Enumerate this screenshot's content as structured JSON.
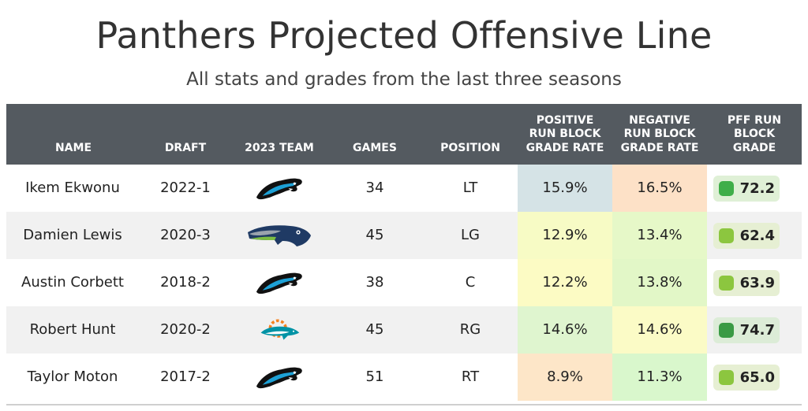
{
  "title": "Panthers Projected Offensive Line",
  "subtitle": "All stats and grades from the last three seasons",
  "columns": {
    "name": "NAME",
    "draft": "DRAFT",
    "team": "2023 TEAM",
    "games": "GAMES",
    "position": "POSITION",
    "positive": [
      "POSITIVE",
      "RUN BLOCK",
      "GRADE RATE"
    ],
    "negative": [
      "NEGATIVE",
      "RUN BLOCK",
      "GRADE RATE"
    ],
    "pff": [
      "PFF RUN",
      "BLOCK",
      "GRADE"
    ]
  },
  "rows": [
    {
      "name": "Ikem Ekwonu",
      "draft": "2022-1",
      "team": "Carolina Panthers",
      "team_logo": "panther-logo-icon",
      "games": "34",
      "position": "LT",
      "positive": "15.9%",
      "positive_color": "#d5e3e6",
      "negative": "16.5%",
      "negative_color": "#fde1c7",
      "grade": "72.2",
      "grade_color": "#3fae49",
      "grade_bg": "#dff0d6"
    },
    {
      "name": "Damien Lewis",
      "draft": "2020-3",
      "team": "Seattle Seahawks",
      "team_logo": "seahawk-logo-icon",
      "games": "45",
      "position": "LG",
      "positive": "12.9%",
      "positive_color": "#f7fbc5",
      "negative": "13.4%",
      "negative_color": "#e6f8c8",
      "grade": "62.4",
      "grade_color": "#8cc63f",
      "grade_bg": "#e6efd3"
    },
    {
      "name": "Austin Corbett",
      "draft": "2018-2",
      "team": "Carolina Panthers",
      "team_logo": "panther-logo-icon",
      "games": "38",
      "position": "C",
      "positive": "12.2%",
      "positive_color": "#fcfbc4",
      "negative": "13.8%",
      "negative_color": "#e2f7c7",
      "grade": "63.9",
      "grade_color": "#8cc63f",
      "grade_bg": "#e6efd3"
    },
    {
      "name": "Robert Hunt",
      "draft": "2020-2",
      "team": "Miami Dolphins",
      "team_logo": "dolphin-logo-icon",
      "games": "45",
      "position": "RG",
      "positive": "14.6%",
      "positive_color": "#dff5cf",
      "negative": "14.6%",
      "negative_color": "#fbfbc6",
      "grade": "74.7",
      "grade_color": "#3a9a44",
      "grade_bg": "#dcecd7"
    },
    {
      "name": "Taylor Moton",
      "draft": "2017-2",
      "team": "Carolina Panthers",
      "team_logo": "panther-logo-icon",
      "games": "51",
      "position": "RT",
      "positive": "8.9%",
      "positive_color": "#fde6c8",
      "negative": "11.3%",
      "negative_color": "#d9f7cc",
      "grade": "65.0",
      "grade_color": "#8cc63f",
      "grade_bg": "#e6efd3"
    }
  ],
  "chart_data": {
    "type": "table",
    "title": "Panthers Projected Offensive Line",
    "subtitle": "All stats and grades from the last three seasons",
    "columns": [
      "NAME",
      "DRAFT",
      "2023 TEAM",
      "GAMES",
      "POSITION",
      "POSITIVE RUN BLOCK GRADE RATE",
      "NEGATIVE RUN BLOCK GRADE RATE",
      "PFF RUN BLOCK GRADE"
    ],
    "rows": [
      [
        "Ikem Ekwonu",
        "2022-1",
        "Carolina Panthers",
        34,
        "LT",
        15.9,
        16.5,
        72.2
      ],
      [
        "Damien Lewis",
        "2020-3",
        "Seattle Seahawks",
        45,
        "LG",
        12.9,
        13.4,
        62.4
      ],
      [
        "Austin Corbett",
        "2018-2",
        "Carolina Panthers",
        38,
        "C",
        12.2,
        13.8,
        63.9
      ],
      [
        "Robert Hunt",
        "2020-2",
        "Miami Dolphins",
        45,
        "RG",
        14.6,
        14.6,
        74.7
      ],
      [
        "Taylor Moton",
        "2017-2",
        "Carolina Panthers",
        51,
        "RT",
        8.9,
        11.3,
        65.0
      ]
    ]
  }
}
